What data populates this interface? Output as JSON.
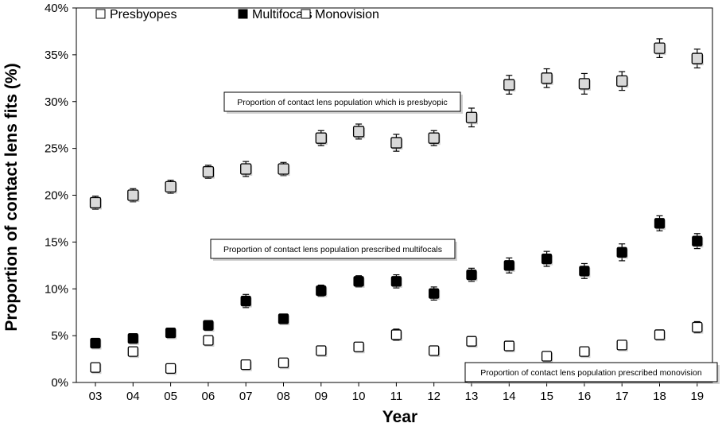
{
  "chart_data": {
    "type": "scatter",
    "xlabel": "Year",
    "ylabel": "Proportion of contact lens fits (%)",
    "ylim": [
      0,
      40
    ],
    "yticks": [
      "0%",
      "5%",
      "10%",
      "15%",
      "20%",
      "25%",
      "30%",
      "35%",
      "40%"
    ],
    "categories": [
      "03",
      "04",
      "05",
      "06",
      "07",
      "08",
      "09",
      "10",
      "11",
      "12",
      "13",
      "14",
      "15",
      "16",
      "17",
      "18",
      "19"
    ],
    "grid": false,
    "legend_position": "top-left",
    "series": [
      {
        "name": "Presbyopes",
        "marker": "light-grey-square",
        "color": "#d9d9d9",
        "values": [
          19.2,
          20.0,
          20.9,
          22.5,
          22.8,
          22.8,
          26.1,
          26.8,
          25.6,
          26.1,
          28.3,
          31.8,
          32.5,
          31.9,
          32.2,
          35.7,
          34.6
        ],
        "errors": [
          0.7,
          0.7,
          0.7,
          0.7,
          0.8,
          0.7,
          0.8,
          0.8,
          0.9,
          0.8,
          1.0,
          1.0,
          1.0,
          1.1,
          1.0,
          1.0,
          1.0
        ]
      },
      {
        "name": "Multifocals",
        "marker": "black-square",
        "color": "#000000",
        "values": [
          4.2,
          4.7,
          5.3,
          6.1,
          8.7,
          6.8,
          9.8,
          10.8,
          10.8,
          9.5,
          11.5,
          12.5,
          13.2,
          11.9,
          13.9,
          17.0,
          15.1
        ],
        "errors": [
          0.4,
          0.4,
          0.5,
          0.5,
          0.7,
          0.4,
          0.6,
          0.6,
          0.7,
          0.7,
          0.7,
          0.8,
          0.8,
          0.8,
          0.9,
          0.8,
          0.8
        ]
      },
      {
        "name": "Monovision",
        "marker": "white-square",
        "color": "#ffffff",
        "values": [
          1.6,
          3.3,
          1.5,
          4.5,
          1.9,
          2.1,
          3.4,
          3.8,
          5.1,
          3.4,
          4.4,
          3.9,
          2.8,
          3.3,
          4.0,
          5.1,
          5.9
        ],
        "errors": [
          0.3,
          0.3,
          0.3,
          0.4,
          0.3,
          0.3,
          0.4,
          0.4,
          0.6,
          0.4,
          0.4,
          0.4,
          0.3,
          0.4,
          0.4,
          0.5,
          0.6
        ]
      }
    ],
    "annotations": [
      {
        "text": "Proportion of contact lens population which is presbyopic",
        "anchor_year": "07",
        "value": 30
      },
      {
        "text": "Proportion of contact lens population prescribed multifocals",
        "anchor_year": "07",
        "value": 14
      },
      {
        "text": "Proportion of contact lens population prescribed monovision",
        "anchor_year": "14",
        "value": 1
      }
    ]
  }
}
